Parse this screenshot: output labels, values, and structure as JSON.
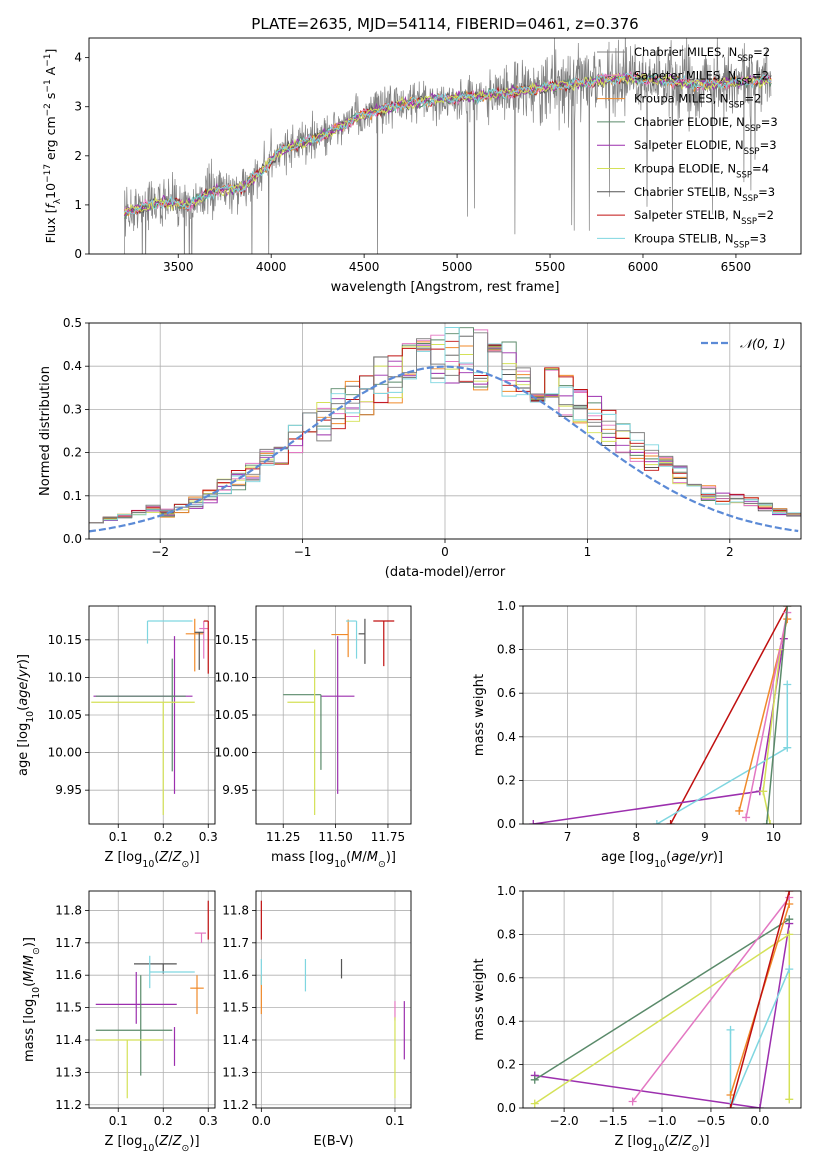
{
  "figure": {
    "title": "PLATE=2635, MJD=54114, FIBERID=0461, z=0.376"
  },
  "colors": {
    "data": "#808080",
    "gauss": "#5b8ad6",
    "grid": "#b0b0b0",
    "models": [
      "#808080",
      "#e377c2",
      "#f08a2a",
      "#5a8a6a",
      "#9c2fae",
      "#d4e157",
      "#555555",
      "#c01010",
      "#7fd6e0"
    ]
  },
  "legends": {
    "models": [
      "Chabrier MILES, N$_{SSP}$=2",
      "Salpeter MILES, N$_{SSP}$=2",
      "Kroupa MILES, N$_{SSP}$=2",
      "Chabrier ELODIE, N$_{SSP}$=3",
      "Salpeter ELODIE, N$_{SSP}$=3",
      "Kroupa ELODIE, N$_{SSP}$=4",
      "Chabrier STELIB, N$_{SSP}$=3",
      "Salpeter STELIB, N$_{SSP}$=2",
      "Kroupa STELIB, N$_{SSP}$=3"
    ],
    "gauss": "𝒩(0, 1)"
  },
  "chart_data": [
    {
      "id": "spectrum",
      "type": "line",
      "xlabel": "wavelength [Angstrom, rest frame]",
      "ylabel": "Flux [f_λ 10^-17 erg cm^-2 s^-1 A^-1]",
      "xlim": [
        3020,
        6850
      ],
      "ylim": [
        0,
        4.4
      ],
      "xticks": [
        3500,
        4000,
        4500,
        5000,
        5500,
        6000,
        6500
      ],
      "yticks": [
        0,
        1,
        2,
        3,
        4
      ],
      "xrange_data": [
        3210,
        6690
      ],
      "continuum": [
        [
          3210,
          0.85
        ],
        [
          3400,
          1.05
        ],
        [
          3550,
          1.0
        ],
        [
          3700,
          1.3
        ],
        [
          3850,
          1.35
        ],
        [
          3950,
          1.7
        ],
        [
          4050,
          2.1
        ],
        [
          4300,
          2.45
        ],
        [
          4500,
          2.85
        ],
        [
          4700,
          3.05
        ],
        [
          4900,
          3.15
        ],
        [
          5100,
          3.2
        ],
        [
          5300,
          3.3
        ],
        [
          5500,
          3.4
        ],
        [
          5700,
          3.5
        ],
        [
          5900,
          3.6
        ],
        [
          6100,
          3.55
        ],
        [
          6300,
          3.45
        ],
        [
          6500,
          3.5
        ],
        [
          6690,
          3.55
        ]
      ],
      "grid": false,
      "legend": "upper-right"
    },
    {
      "id": "residuals",
      "type": "step",
      "xlabel": "(data-model)/error",
      "ylabel": "Normed distribution",
      "xlim": [
        -2.5,
        2.5
      ],
      "ylim": [
        0,
        0.5
      ],
      "xticks": [
        -2,
        -1,
        0,
        1,
        2
      ],
      "yticks": [
        0.0,
        0.1,
        0.2,
        0.3,
        0.4,
        0.5
      ],
      "bin_width": 0.1,
      "grid": true,
      "legend": "upper-right"
    },
    {
      "id": "age-vs-Z",
      "type": "errorbar",
      "xlabel": "Z [log10(Z/Z⊙)]",
      "ylabel": "age  [log10(age/yr)]",
      "xlim": [
        0.035,
        0.315
      ],
      "ylim": [
        9.905,
        10.195
      ],
      "xticks": [
        0.1,
        0.2,
        0.3
      ],
      "yticks": [
        9.95,
        10.0,
        10.05,
        10.1,
        10.15
      ],
      "points": [
        {
          "x": 0.225,
          "y": 10.075,
          "xerr": [
            0.18,
            0.04
          ],
          "yerr": [
            0.13,
            0.08
          ],
          "color": 4
        },
        {
          "x": 0.22,
          "y": 10.075,
          "xerr": [
            0.17,
            0.03
          ],
          "yerr": [
            0.1,
            0.05
          ],
          "color": 3
        },
        {
          "x": 0.2,
          "y": 10.067,
          "xerr": [
            0.16,
            0.07
          ],
          "yerr": [
            0.15,
            0.0
          ],
          "color": 5
        },
        {
          "x": 0.165,
          "y": 10.175,
          "xerr": [
            0.0,
            0.1
          ],
          "yerr": [
            0.03,
            0.0
          ],
          "color": 8
        },
        {
          "x": 0.27,
          "y": 10.158,
          "xerr": [
            0.02,
            0.02
          ],
          "yerr": [
            0.05,
            0.02
          ],
          "color": 2
        },
        {
          "x": 0.29,
          "y": 10.165,
          "xerr": [
            0.01,
            0.01
          ],
          "yerr": [
            0.04,
            0.01
          ],
          "color": 1
        },
        {
          "x": 0.3,
          "y": 10.175,
          "xerr": [
            0.01,
            0.0
          ],
          "yerr": [
            0.07,
            0.0
          ],
          "color": 7
        },
        {
          "x": 0.28,
          "y": 10.16,
          "xerr": [
            0.01,
            0.01
          ],
          "yerr": [
            0.05,
            0.0
          ],
          "color": 6
        }
      ],
      "grid": true
    },
    {
      "id": "age-vs-mass",
      "type": "errorbar",
      "xlabel": "mass [log10(M/M⊙)]",
      "ylabel": "",
      "xlim": [
        11.12,
        11.86
      ],
      "ylim": [
        9.905,
        10.195
      ],
      "xticks": [
        11.25,
        11.5,
        11.75
      ],
      "yticks": [
        9.95,
        10.0,
        10.05,
        10.1,
        10.15
      ],
      "points": [
        {
          "x": 11.51,
          "y": 10.075,
          "xerr": [
            0.08,
            0.08
          ],
          "yerr": [
            0.13,
            0.08
          ],
          "color": 4
        },
        {
          "x": 11.43,
          "y": 10.077,
          "xerr": [
            0.18,
            0.0
          ],
          "yerr": [
            0.1,
            0.0
          ],
          "color": 3
        },
        {
          "x": 11.4,
          "y": 10.067,
          "xerr": [
            0.13,
            0.0
          ],
          "yerr": [
            0.15,
            0.07
          ],
          "color": 5
        },
        {
          "x": 11.56,
          "y": 10.157,
          "xerr": [
            0.08,
            0.0
          ],
          "yerr": [
            0.03,
            0.02
          ],
          "color": 2
        },
        {
          "x": 11.6,
          "y": 10.175,
          "xerr": [
            0.05,
            0.0
          ],
          "yerr": [
            0.05,
            0.0
          ],
          "color": 8
        },
        {
          "x": 11.64,
          "y": 10.158,
          "xerr": [
            0.03,
            0.0
          ],
          "yerr": [
            0.04,
            0.02
          ],
          "color": 6
        },
        {
          "x": 11.73,
          "y": 10.175,
          "xerr": [
            0.05,
            0.05
          ],
          "yerr": [
            0.06,
            0.0
          ],
          "color": 7
        }
      ],
      "grid": true
    },
    {
      "id": "weight-vs-age",
      "type": "line",
      "xlabel": "age  [log10(age/yr)]",
      "ylabel": "mass weight",
      "xlim": [
        6.35,
        10.4
      ],
      "ylim": [
        0,
        1
      ],
      "xticks": [
        7,
        8,
        9,
        10
      ],
      "yticks": [
        0.0,
        0.2,
        0.4,
        0.6,
        0.8,
        1.0
      ],
      "series": [
        {
          "color": 7,
          "points": [
            [
              8.5,
              0.0
            ],
            [
              10.2,
              1.0
            ]
          ]
        },
        {
          "color": 4,
          "points": [
            [
              6.5,
              0.0
            ],
            [
              9.8,
              0.15
            ],
            [
              10.15,
              0.85
            ]
          ]
        },
        {
          "color": 8,
          "points": [
            [
              8.3,
              0.0
            ],
            [
              10.2,
              0.35
            ],
            [
              10.2,
              0.64
            ]
          ]
        },
        {
          "color": 5,
          "points": [
            [
              9.95,
              0.0
            ],
            [
              9.85,
              0.15
            ],
            [
              10.1,
              0.8
            ]
          ]
        },
        {
          "color": 2,
          "points": [
            [
              9.5,
              0.06
            ],
            [
              10.2,
              0.94
            ]
          ]
        },
        {
          "color": 1,
          "points": [
            [
              9.6,
              0.03
            ],
            [
              10.2,
              0.97
            ]
          ]
        },
        {
          "color": 3,
          "points": [
            [
              9.9,
              0.0
            ],
            [
              10.2,
              1.0
            ]
          ]
        }
      ],
      "grid": true
    },
    {
      "id": "mass-vs-Z",
      "type": "errorbar",
      "xlabel": "Z [log10(Z/Z⊙)]",
      "ylabel": "mass [log10(M/M⊙)]",
      "xlim": [
        0.035,
        0.315
      ],
      "ylim": [
        11.19,
        11.86
      ],
      "xticks": [
        0.1,
        0.2,
        0.3
      ],
      "yticks": [
        11.2,
        11.3,
        11.4,
        11.5,
        11.6,
        11.7,
        11.8
      ],
      "points": [
        {
          "x": 0.2,
          "y": 11.635,
          "xerr": [
            0.065,
            0.03
          ],
          "yerr": [
            0.03,
            0.0
          ],
          "color": 6
        },
        {
          "x": 0.17,
          "y": 11.61,
          "xerr": [
            0.0,
            0.1
          ],
          "yerr": [
            0.05,
            0.05
          ],
          "color": 8
        },
        {
          "x": 0.14,
          "y": 11.51,
          "xerr": [
            0.09,
            0.09
          ],
          "yerr": [
            0.06,
            0.1
          ],
          "color": 4
        },
        {
          "x": 0.15,
          "y": 11.43,
          "xerr": [
            0.1,
            0.07
          ],
          "yerr": [
            0.14,
            0.17
          ],
          "color": 3
        },
        {
          "x": 0.12,
          "y": 11.4,
          "xerr": [
            0.07,
            0.08
          ],
          "yerr": [
            0.18,
            0.0
          ],
          "color": 5
        },
        {
          "x": 0.275,
          "y": 11.56,
          "xerr": [
            0.015,
            0.015
          ],
          "yerr": [
            0.08,
            0.04
          ],
          "color": 2
        },
        {
          "x": 0.285,
          "y": 11.73,
          "xerr": [
            0.015,
            0.01
          ],
          "yerr": [
            0.03,
            0.0
          ],
          "color": 1
        },
        {
          "x": 0.3,
          "y": 11.77,
          "xerr": [
            0.0,
            0.0
          ],
          "yerr": [
            0.06,
            0.06
          ],
          "color": 7
        },
        {
          "x": 0.225,
          "y": 11.38,
          "xerr": [
            0.0,
            0.0
          ],
          "yerr": [
            0.06,
            0.06
          ],
          "color": 4
        }
      ],
      "grid": true
    },
    {
      "id": "mass-vs-EBV",
      "type": "errorbar",
      "xlabel": "E(B-V)",
      "ylabel": "",
      "xlim": [
        -0.004,
        0.112
      ],
      "ylim": [
        11.19,
        11.86
      ],
      "xticks": [
        0.0,
        0.1
      ],
      "yticks": [
        11.2,
        11.3,
        11.4,
        11.5,
        11.6,
        11.7,
        11.8
      ],
      "points": [
        {
          "x": 0.0,
          "y": 11.77,
          "xerr": [
            0,
            0
          ],
          "yerr": [
            0.06,
            0.06
          ],
          "color": 7
        },
        {
          "x": 0.0,
          "y": 11.56,
          "xerr": [
            0,
            0
          ],
          "yerr": [
            0.08,
            0.04
          ],
          "color": 2
        },
        {
          "x": 0.0,
          "y": 11.61,
          "xerr": [
            0,
            0
          ],
          "yerr": [
            0.04,
            0.04
          ],
          "color": 8
        },
        {
          "x": 0.033,
          "y": 11.6,
          "xerr": [
            0,
            0
          ],
          "yerr": [
            0.05,
            0.05
          ],
          "color": 8
        },
        {
          "x": 0.06,
          "y": 11.62,
          "xerr": [
            0,
            0
          ],
          "yerr": [
            0.03,
            0.03
          ],
          "color": 6
        },
        {
          "x": 0.1,
          "y": 11.49,
          "xerr": [
            0,
            0
          ],
          "yerr": [
            0.03,
            0.03
          ],
          "color": 1
        },
        {
          "x": 0.1,
          "y": 11.35,
          "xerr": [
            0,
            0
          ],
          "yerr": [
            0.13,
            0.12
          ],
          "color": 5
        },
        {
          "x": 0.107,
          "y": 11.44,
          "xerr": [
            0,
            0
          ],
          "yerr": [
            0.1,
            0.08
          ],
          "color": 4
        }
      ],
      "grid": true
    },
    {
      "id": "weight-vs-Z",
      "type": "line",
      "xlabel": "Z [log10(Z/Z⊙)]",
      "ylabel": "mass weight",
      "xlim": [
        -2.42,
        0.42
      ],
      "ylim": [
        0,
        1
      ],
      "xticks": [
        -2.0,
        -1.5,
        -1.0,
        -0.5,
        0.0
      ],
      "yticks": [
        0.0,
        0.2,
        0.4,
        0.6,
        0.8,
        1.0
      ],
      "series": [
        {
          "color": 4,
          "points": [
            [
              -2.3,
              0.15
            ],
            [
              0.0,
              0.0
            ],
            [
              0.3,
              0.85
            ]
          ]
        },
        {
          "color": 3,
          "points": [
            [
              -2.3,
              0.13
            ],
            [
              0.3,
              0.87
            ]
          ]
        },
        {
          "color": 5,
          "points": [
            [
              -2.3,
              0.02
            ],
            [
              0.3,
              0.8
            ],
            [
              0.3,
              0.04
            ]
          ]
        },
        {
          "color": 1,
          "points": [
            [
              -1.3,
              0.03
            ],
            [
              0.3,
              0.97
            ]
          ]
        },
        {
          "color": 8,
          "points": [
            [
              -0.3,
              0.36
            ],
            [
              -0.3,
              0.0
            ],
            [
              0.3,
              0.64
            ]
          ]
        },
        {
          "color": 2,
          "points": [
            [
              -0.3,
              0.06
            ],
            [
              0.3,
              0.94
            ]
          ]
        },
        {
          "color": 7,
          "points": [
            [
              -0.3,
              0.0
            ],
            [
              0.3,
              1.0
            ]
          ]
        }
      ],
      "grid": true
    }
  ]
}
